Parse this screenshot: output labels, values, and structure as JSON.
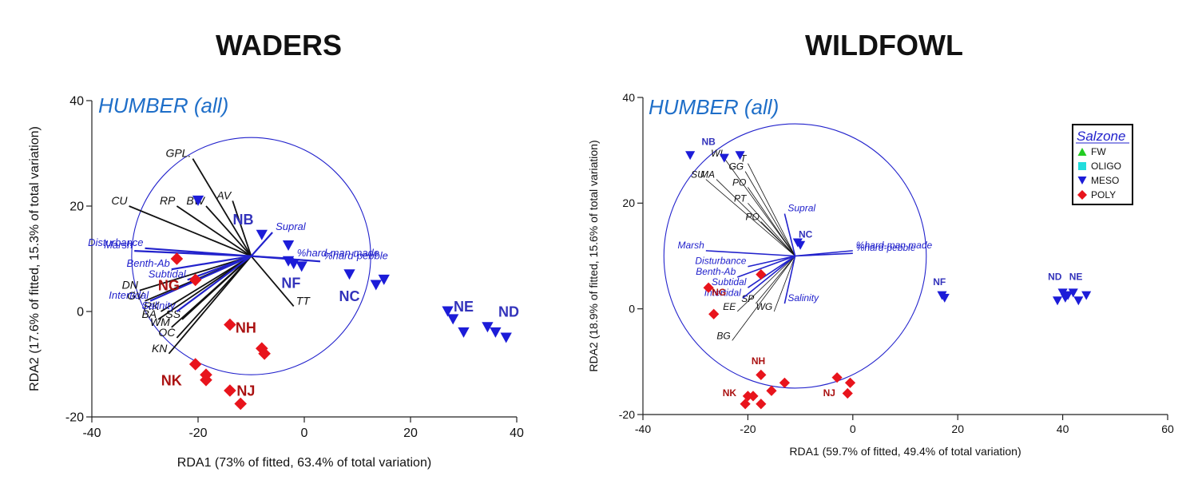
{
  "titles": {
    "waders": "WADERS",
    "wildfowl": "WILDFOWL"
  },
  "colors": {
    "meso": "#1c1cd8",
    "poly": "#e8141c",
    "fw": "#22cc22",
    "oligo": "#22dddd",
    "vector": "#2222cc",
    "species": "#111111",
    "site_label_meso": "#3333bb",
    "site_label_poly": "#aa1111",
    "annotation": "#1e6ec8"
  },
  "chart_data": [
    {
      "type": "scatter",
      "subtype": "rda-biplot",
      "title": "WADERS",
      "annotation": "HUMBER (all)",
      "xlabel": "RDA1 (73% of fitted, 63.4% of total variation)",
      "ylabel": "RDA2 (17.6% of fitted, 15.3% of total variation)",
      "xlim": [
        -40,
        40
      ],
      "ylim": [
        -20,
        40
      ],
      "xticks": [
        -40,
        -20,
        0,
        20,
        40
      ],
      "yticks": [
        -20,
        0,
        20,
        40
      ],
      "circle": {
        "cx": -10,
        "cy": 10.5,
        "r": 22.5
      },
      "origin": [
        -10,
        10.5
      ],
      "species": [
        {
          "label": "GPL.",
          "x": -21,
          "y": 29
        },
        {
          "label": "AV",
          "x": -13.5,
          "y": 21
        },
        {
          "label": "BW",
          "x": -18.5,
          "y": 20
        },
        {
          "label": "RP",
          "x": -24,
          "y": 20
        },
        {
          "label": "CU",
          "x": -33,
          "y": 20
        },
        {
          "label": "DN",
          "x": -31,
          "y": 4
        },
        {
          "label": "GV",
          "x": -30,
          "y": 2
        },
        {
          "label": "RK",
          "x": -27,
          "y": 0
        },
        {
          "label": "BA",
          "x": -27.5,
          "y": -1.5
        },
        {
          "label": "SS",
          "x": -23,
          "y": -1.5
        },
        {
          "label": "WM",
          "x": -25,
          "y": -3
        },
        {
          "label": "OC",
          "x": -24,
          "y": -5
        },
        {
          "label": "KN",
          "x": -25.5,
          "y": -8
        },
        {
          "label": "TT",
          "x": -2,
          "y": 1
        }
      ],
      "environment": [
        {
          "label": "Supral",
          "x": -6,
          "y": 15
        },
        {
          "label": "%hard-man made",
          "x": -2,
          "y": 10
        },
        {
          "label": "%hard-pebble",
          "x": 3,
          "y": 9.5
        },
        {
          "label": "Disturbance",
          "x": -30,
          "y": 12
        },
        {
          "label": "Marsh",
          "x": -32,
          "y": 11.5
        },
        {
          "label": "Benth-Ab",
          "x": -25,
          "y": 8
        },
        {
          "label": "Subtidal",
          "x": -22,
          "y": 6
        },
        {
          "label": "Intertidal",
          "x": -29,
          "y": 2
        },
        {
          "label": "Salinity",
          "x": -24,
          "y": 0
        }
      ],
      "series": [
        {
          "name": "MESO",
          "marker": "triangle-down",
          "points": [
            [
              -20,
              21
            ],
            [
              -8,
              14.5
            ],
            [
              -3,
              12.5
            ],
            [
              -3,
              9.5
            ],
            [
              -2,
              9
            ],
            [
              -0.5,
              8.5
            ],
            [
              8.5,
              7
            ],
            [
              13.5,
              5
            ],
            [
              15,
              6
            ],
            [
              27,
              0
            ],
            [
              28,
              -1.5
            ],
            [
              30,
              -4
            ],
            [
              34.5,
              -3
            ],
            [
              36,
              -4
            ],
            [
              38,
              -5
            ]
          ]
        },
        {
          "name": "POLY",
          "marker": "diamond",
          "points": [
            [
              -24,
              10
            ],
            [
              -20.5,
              6
            ],
            [
              -14,
              -2.5
            ],
            [
              -8,
              -7
            ],
            [
              -7.5,
              -8
            ],
            [
              -20.5,
              -10
            ],
            [
              -18.5,
              -12
            ],
            [
              -18.5,
              -13
            ],
            [
              -14,
              -15
            ],
            [
              -12,
              -17.5
            ]
          ]
        }
      ],
      "site_labels": [
        {
          "label": "NB",
          "x": -11.5,
          "y": 16.5,
          "group": "MESO"
        },
        {
          "label": "NF",
          "x": -2.5,
          "y": 4.5,
          "group": "MESO"
        },
        {
          "label": "NC",
          "x": 8.5,
          "y": 2,
          "group": "MESO"
        },
        {
          "label": "NE",
          "x": 30,
          "y": 0,
          "group": "MESO"
        },
        {
          "label": "ND",
          "x": 38.5,
          "y": -1,
          "group": "MESO"
        },
        {
          "label": "NG",
          "x": -25.5,
          "y": 4,
          "group": "POLY"
        },
        {
          "label": "NH",
          "x": -11,
          "y": -4,
          "group": "POLY"
        },
        {
          "label": "NK",
          "x": -25,
          "y": -14,
          "group": "POLY"
        },
        {
          "label": "NJ",
          "x": -11,
          "y": -16,
          "group": "POLY"
        }
      ]
    },
    {
      "type": "scatter",
      "subtype": "rda-biplot",
      "title": "WILDFOWL",
      "annotation": "HUMBER (all)",
      "xlabel": "RDA1 (59.7% of fitted, 49.4% of total variation)",
      "ylabel": "RDA2 (18.9% of fitted, 15.6% of total variation)",
      "xlim": [
        -40,
        60
      ],
      "ylim": [
        -20,
        40
      ],
      "xticks": [
        -40,
        -20,
        0,
        20,
        40,
        60
      ],
      "yticks": [
        -20,
        0,
        20,
        40
      ],
      "circle": {
        "cx": -11,
        "cy": 10,
        "r": 25
      },
      "origin": [
        -11,
        10
      ],
      "legend": {
        "title": "Salzone",
        "position": "top-right",
        "items": [
          "FW",
          "OLIGO",
          "MESO",
          "POLY"
        ]
      },
      "species": [
        {
          "label": "WI",
          "x": -24.5,
          "y": 28.5
        },
        {
          "label": "T",
          "x": -20,
          "y": 27.5
        },
        {
          "label": "GG",
          "x": -20.5,
          "y": 26
        },
        {
          "label": "SU",
          "x": -28,
          "y": 24.5
        },
        {
          "label": "MA",
          "x": -26,
          "y": 24.5
        },
        {
          "label": "PO",
          "x": -20,
          "y": 23
        },
        {
          "label": "PT",
          "x": -20,
          "y": 20
        },
        {
          "label": "PO",
          "x": -17.5,
          "y": 16.5
        },
        {
          "label": "SP",
          "x": -18.5,
          "y": 1
        },
        {
          "label": "EE",
          "x": -22,
          "y": -0.5
        },
        {
          "label": "WG",
          "x": -15,
          "y": -0.5
        },
        {
          "label": "BG",
          "x": -23,
          "y": -6
        }
      ],
      "environment": [
        {
          "label": "Supral",
          "x": -13,
          "y": 18
        },
        {
          "label": "%hard-man made",
          "x": 0,
          "y": 11
        },
        {
          "label": "%hard-pebble",
          "x": 0,
          "y": 10.5
        },
        {
          "label": "Marsh",
          "x": -28,
          "y": 11
        },
        {
          "label": "Disturbance",
          "x": -20,
          "y": 8
        },
        {
          "label": "Benth-Ab",
          "x": -22,
          "y": 6
        },
        {
          "label": "Subtidal",
          "x": -20,
          "y": 4
        },
        {
          "label": "Intertidal",
          "x": -21,
          "y": 2
        },
        {
          "label": "Salinity",
          "x": -13,
          "y": 1
        }
      ],
      "series": [
        {
          "name": "MESO",
          "marker": "triangle-down",
          "points": [
            [
              -31,
              29
            ],
            [
              -24.5,
              28.5
            ],
            [
              -21.5,
              29
            ],
            [
              -10.5,
              12.5
            ],
            [
              -10,
              12
            ],
            [
              17,
              2.5
            ],
            [
              17.5,
              2
            ],
            [
              39,
              1.5
            ],
            [
              40,
              3
            ],
            [
              40.5,
              2
            ],
            [
              41,
              2.5
            ],
            [
              42,
              3
            ],
            [
              43,
              1.5
            ],
            [
              44.5,
              2.5
            ]
          ]
        },
        {
          "name": "POLY",
          "marker": "diamond",
          "points": [
            [
              -17.5,
              6.5
            ],
            [
              -27.5,
              4
            ],
            [
              -26.5,
              -1
            ],
            [
              -17.5,
              -12.5
            ],
            [
              -13,
              -14
            ],
            [
              -19,
              -16.5
            ],
            [
              -20,
              -16.5
            ],
            [
              -15.5,
              -15.5
            ],
            [
              -20.5,
              -18
            ],
            [
              -17.5,
              -18
            ],
            [
              -3,
              -13
            ],
            [
              -0.5,
              -14
            ],
            [
              -1,
              -16
            ]
          ]
        },
        {
          "name": "FW",
          "marker": "triangle-up",
          "points": []
        },
        {
          "name": "OLIGO",
          "marker": "square",
          "points": []
        }
      ],
      "site_labels": [
        {
          "label": "NB",
          "x": -27.5,
          "y": 31,
          "group": "MESO"
        },
        {
          "label": "NC",
          "x": -9,
          "y": 13.5,
          "group": "MESO"
        },
        {
          "label": "NF",
          "x": 16.5,
          "y": 4.5,
          "group": "MESO"
        },
        {
          "label": "ND",
          "x": 38.5,
          "y": 5.5,
          "group": "MESO"
        },
        {
          "label": "NE",
          "x": 42.5,
          "y": 5.5,
          "group": "MESO"
        },
        {
          "label": "NG",
          "x": -25.5,
          "y": 2.5,
          "group": "POLY"
        },
        {
          "label": "NH",
          "x": -18,
          "y": -10.5,
          "group": "POLY"
        },
        {
          "label": "NK",
          "x": -23.5,
          "y": -16.5,
          "group": "POLY"
        },
        {
          "label": "NJ",
          "x": -4.5,
          "y": -16.5,
          "group": "POLY"
        }
      ]
    }
  ]
}
